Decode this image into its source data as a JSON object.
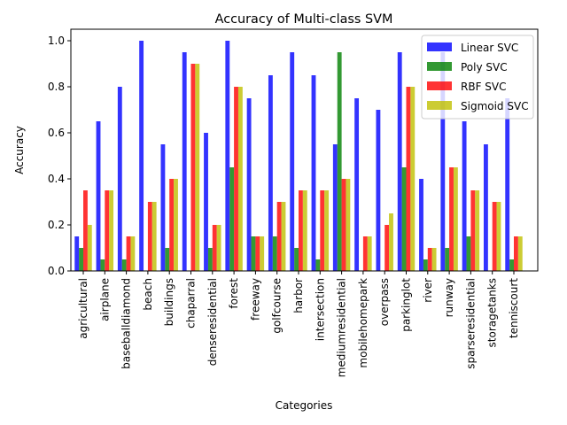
{
  "chart_data": {
    "type": "bar",
    "title": "Accuracy of Multi-class SVM",
    "xlabel": "Categories",
    "ylabel": "Accuracy",
    "ylim": [
      0,
      1.05
    ],
    "yticks": [
      "0.0",
      "0.2",
      "0.4",
      "0.6",
      "0.8",
      "1.0"
    ],
    "legend_position": "top-right",
    "categories": [
      "agricultural",
      "airplane",
      "baseballdiamond",
      "beach",
      "buildings",
      "chaparral",
      "denseresidential",
      "forest",
      "freeway",
      "golfcourse",
      "harbor",
      "intersection",
      "mediumresidential",
      "mobilehomepark",
      "overpass",
      "parkinglot",
      "river",
      "runway",
      "sparseresidential",
      "storagetanks",
      "tenniscourt"
    ],
    "series": [
      {
        "name": "Linear SVC",
        "color": "#0000ff",
        "values": [
          0.15,
          0.65,
          0.8,
          1.0,
          0.55,
          0.95,
          0.6,
          1.0,
          0.75,
          0.85,
          0.95,
          0.85,
          0.55,
          0.75,
          0.7,
          0.95,
          0.4,
          0.95,
          0.65,
          0.55,
          0.75
        ]
      },
      {
        "name": "Poly SVC",
        "color": "#008000",
        "values": [
          0.1,
          0.05,
          0.05,
          0.0,
          0.1,
          0.0,
          0.1,
          0.45,
          0.15,
          0.15,
          0.1,
          0.05,
          0.95,
          0.0,
          0.0,
          0.45,
          0.05,
          0.1,
          0.15,
          0.0,
          0.05
        ]
      },
      {
        "name": "RBF SVC",
        "color": "#ff0000",
        "values": [
          0.35,
          0.35,
          0.15,
          0.3,
          0.4,
          0.9,
          0.2,
          0.8,
          0.15,
          0.3,
          0.35,
          0.35,
          0.4,
          0.15,
          0.2,
          0.8,
          0.1,
          0.45,
          0.35,
          0.3,
          0.15
        ]
      },
      {
        "name": "Sigmoid SVC",
        "color": "#bfbf00",
        "values": [
          0.2,
          0.35,
          0.15,
          0.3,
          0.4,
          0.9,
          0.2,
          0.8,
          0.15,
          0.3,
          0.35,
          0.35,
          0.4,
          0.15,
          0.25,
          0.8,
          0.1,
          0.45,
          0.35,
          0.3,
          0.15
        ]
      }
    ]
  }
}
